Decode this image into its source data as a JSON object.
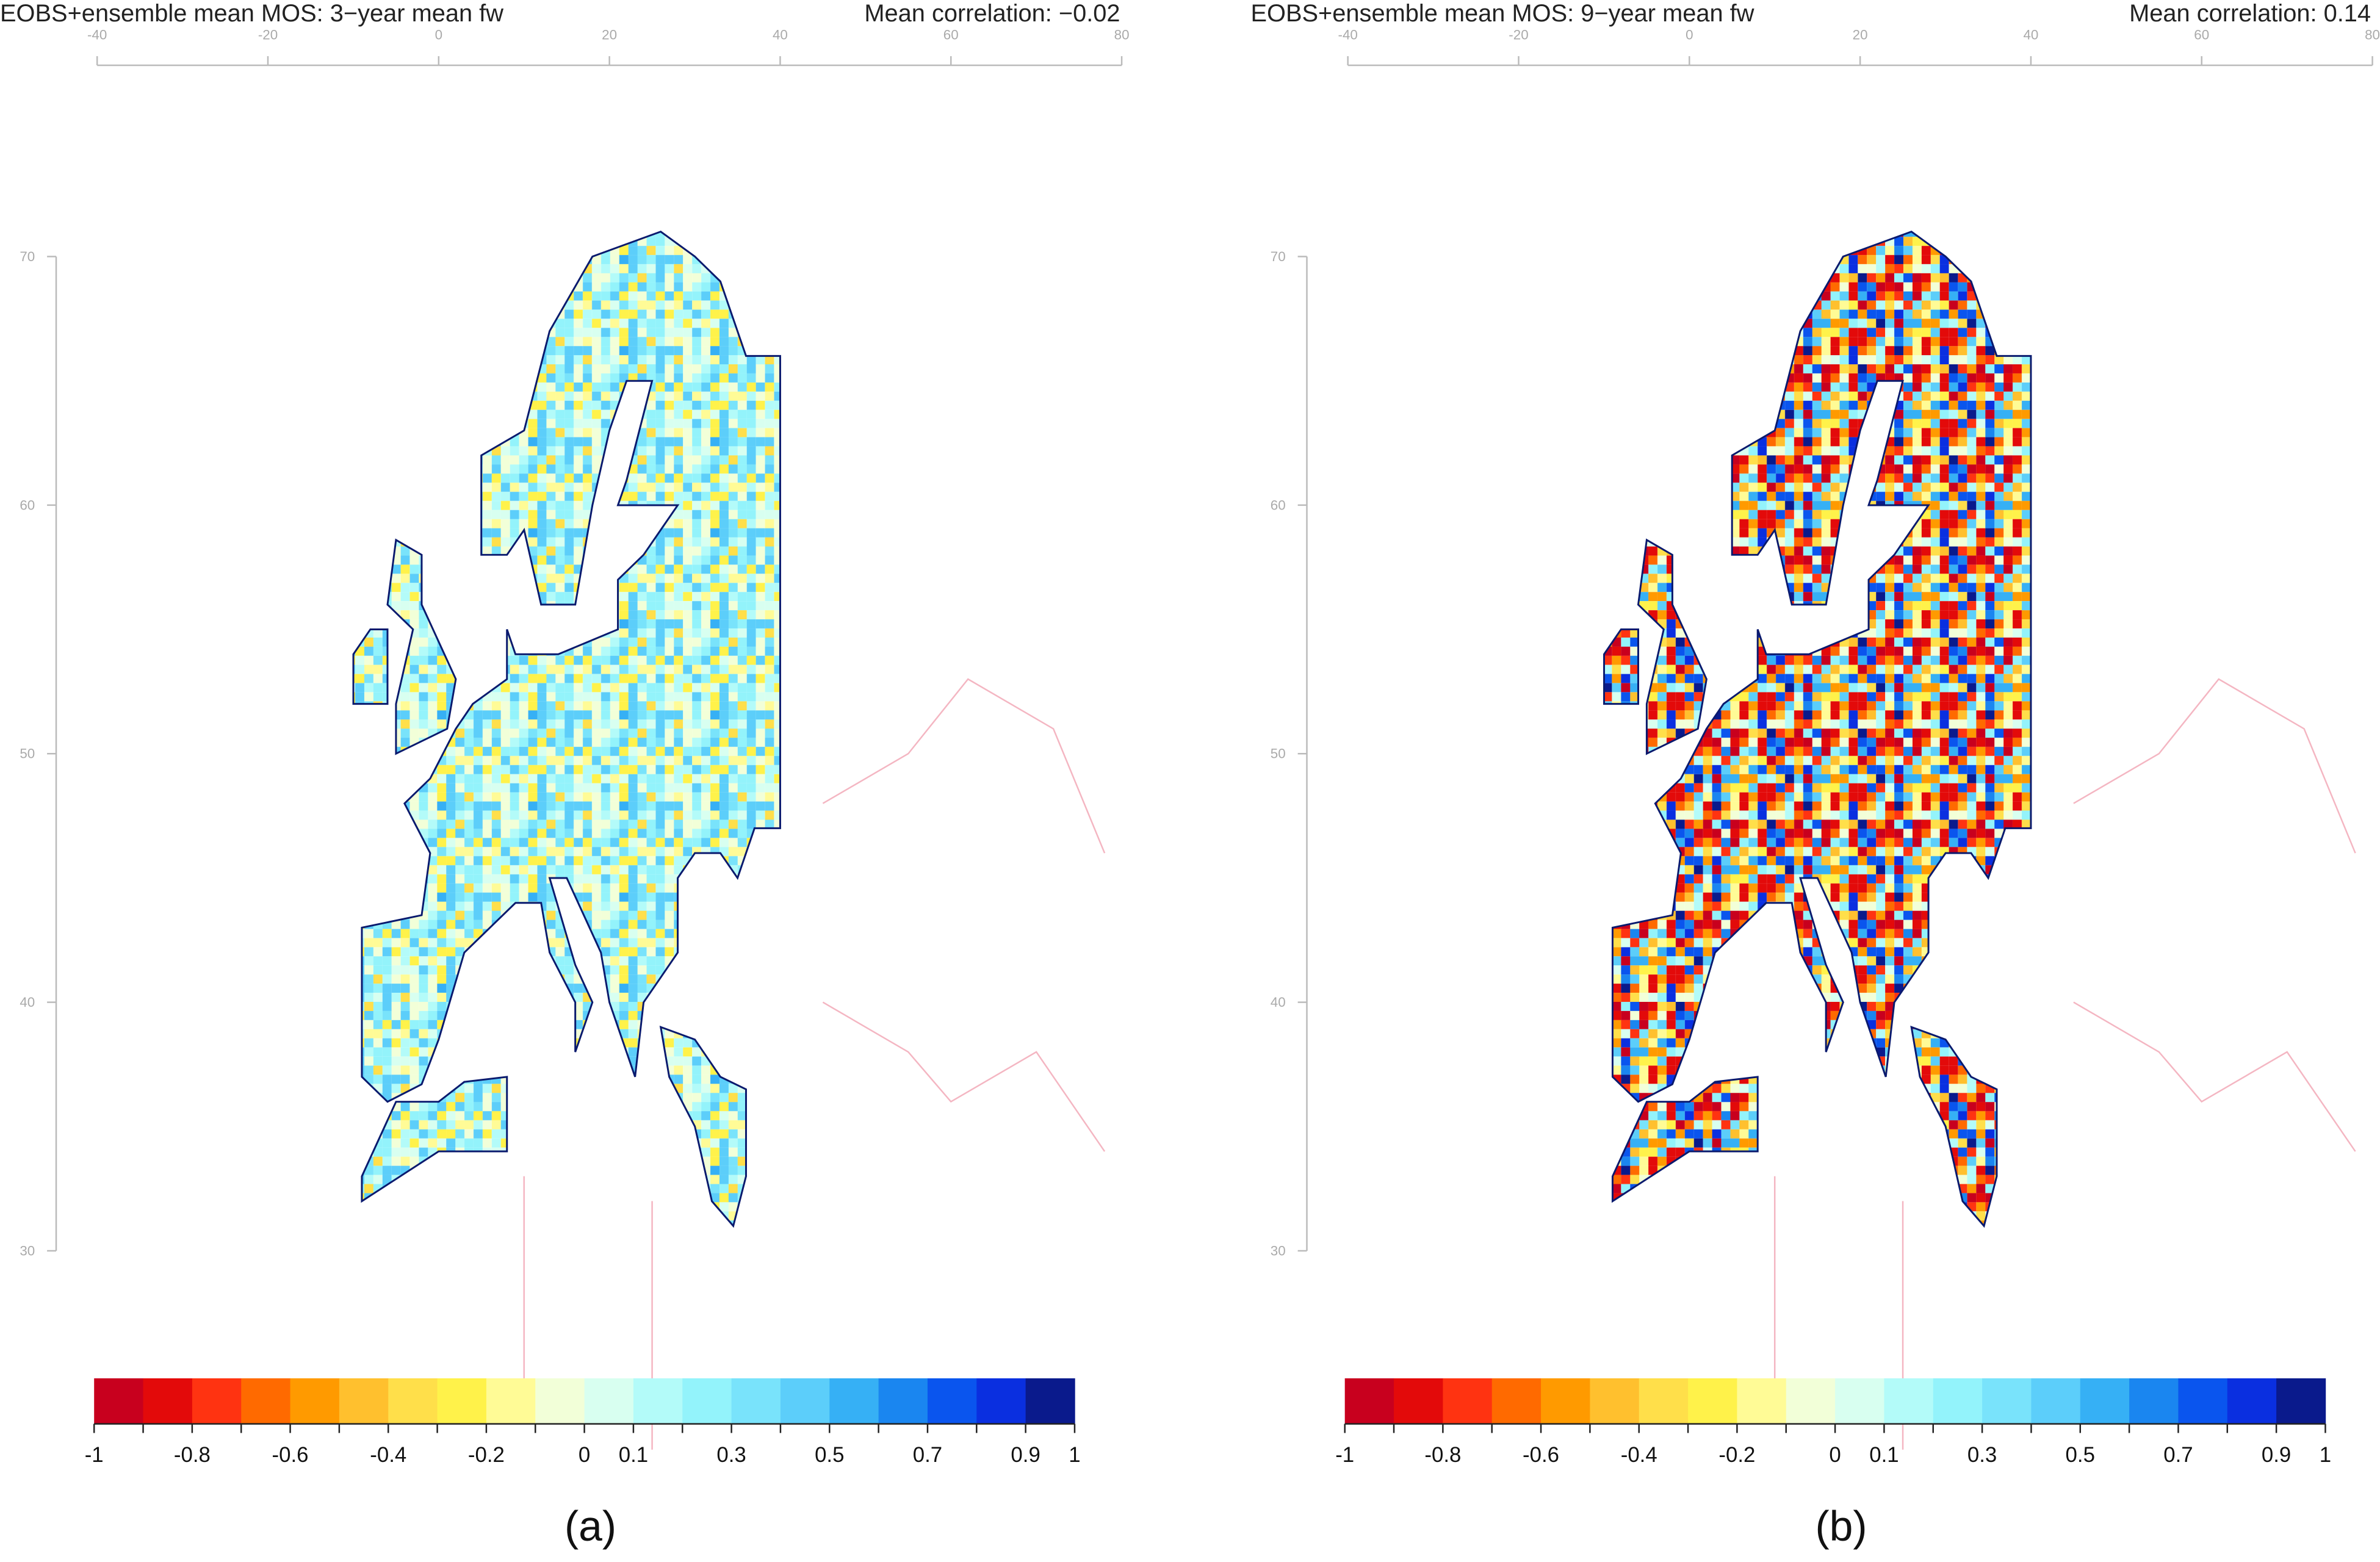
{
  "panels": [
    {
      "title": "EOBS+ensemble mean MOS: 3−year mean fw",
      "correlation": "Mean correlation: −0.02",
      "label": "(a)"
    },
    {
      "title": "EOBS+ensemble mean MOS: 9−year mean fw",
      "correlation": "Mean correlation: 0.14",
      "label": "(b)"
    }
  ],
  "map_axes": {
    "lonlim": [
      -40,
      80
    ],
    "lon_ticks": [
      -40,
      -20,
      0,
      20,
      40,
      60,
      80
    ],
    "latlim": [
      30,
      70
    ],
    "lat_ticks": [
      30,
      40,
      50,
      60,
      70
    ]
  },
  "colorbar": {
    "breaks": [
      -1,
      -0.9,
      -0.8,
      -0.7,
      -0.6,
      -0.5,
      -0.4,
      -0.3,
      -0.2,
      -0.1,
      0,
      0.1,
      0.2,
      0.3,
      0.4,
      0.5,
      0.6,
      0.7,
      0.8,
      0.9,
      1
    ],
    "colors": [
      "#c8001e",
      "#e30a0a",
      "#ff3311",
      "#ff6a00",
      "#ff9a00",
      "#ffc02e",
      "#ffdf4a",
      "#fff24a",
      "#fffb96",
      "#f2ffd8",
      "#d8fff0",
      "#b3fbf9",
      "#93f3fb",
      "#79e3fb",
      "#5ccefa",
      "#36b0f5",
      "#1a86f0",
      "#0a55ee",
      "#0a2fe0",
      "#0a1a8c"
    ],
    "ticks": [
      -1,
      -0.8,
      -0.6,
      -0.4,
      -0.2,
      0,
      0.1,
      0.3,
      0.5,
      0.7,
      0.9,
      1
    ]
  }
}
